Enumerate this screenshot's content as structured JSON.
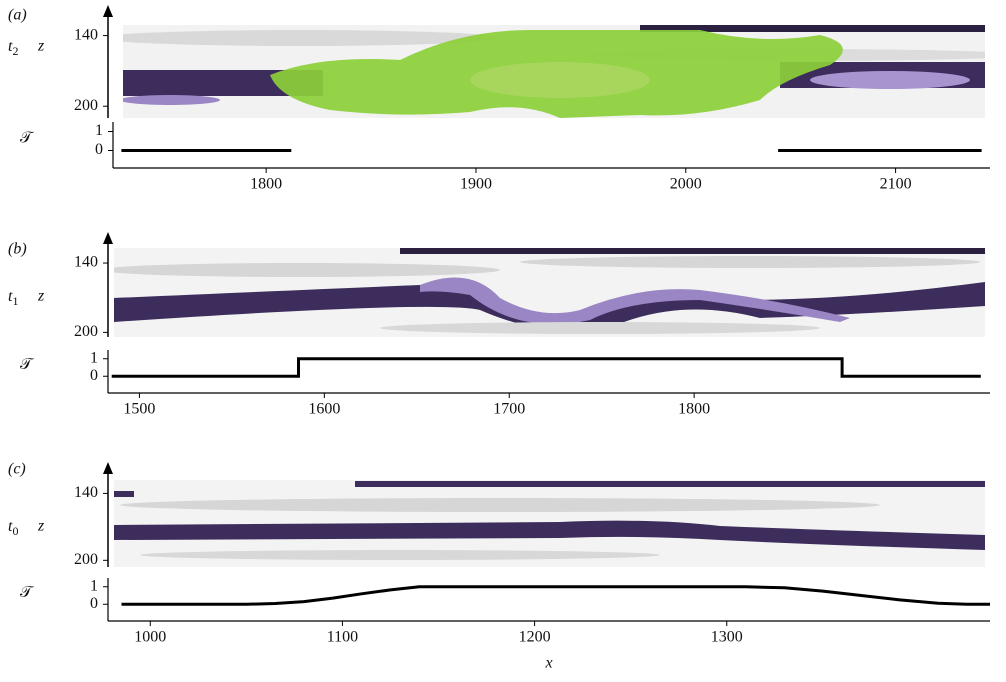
{
  "chart_data": [
    {
      "type": "line",
      "panel_label": "(a)",
      "time_label": "t",
      "time_subscript": "2",
      "z_label": "z",
      "y_label": "𝒯",
      "x": [
        1731,
        1812,
        1900,
        2044,
        2141
      ],
      "values": [
        0,
        0,
        null,
        0,
        0
      ],
      "color": "#000000",
      "xlim": [
        1727,
        2145
      ],
      "xticks": [
        1800,
        1900,
        2000,
        2100
      ],
      "ylim": [
        -0.5,
        1.5
      ],
      "yticks": [
        0,
        1
      ],
      "zlim": [
        131,
        210
      ],
      "zticks": [
        140,
        200
      ]
    },
    {
      "type": "line",
      "panel_label": "(b)",
      "time_label": "t",
      "time_subscript": "1",
      "z_label": "z",
      "y_label": "𝒯",
      "x": [
        1485,
        1586,
        1586,
        1880,
        1880,
        1955
      ],
      "values": [
        0,
        0,
        1,
        1,
        0,
        0
      ],
      "color": "#000000",
      "xlim": [
        1483,
        1960
      ],
      "xticks": [
        1500,
        1600,
        1700,
        1800
      ],
      "ylim": [
        -0.5,
        1.5
      ],
      "yticks": [
        0,
        1
      ],
      "zlim": [
        127,
        204
      ],
      "zticks": [
        140,
        200
      ]
    },
    {
      "type": "line",
      "panel_label": "(c)",
      "time_label": "t",
      "time_subscript": "0",
      "z_label": "z",
      "y_label": "𝒯",
      "x_label": "x",
      "x": [
        985,
        1050,
        1065,
        1080,
        1095,
        1110,
        1125,
        1140,
        1310,
        1330,
        1350,
        1370,
        1390,
        1410,
        1425,
        1437
      ],
      "values": [
        0,
        0,
        0.04,
        0.15,
        0.35,
        0.6,
        0.82,
        1,
        1,
        0.94,
        0.75,
        0.5,
        0.25,
        0.06,
        0,
        0
      ],
      "color": "#000000",
      "xlim": [
        978,
        1437
      ],
      "xticks": [
        1000,
        1100,
        1200,
        1300
      ],
      "ylim": [
        -0.5,
        1.5
      ],
      "yticks": [
        0,
        1
      ],
      "zlim": [
        128,
        206
      ],
      "zticks": [
        140,
        200
      ]
    }
  ]
}
